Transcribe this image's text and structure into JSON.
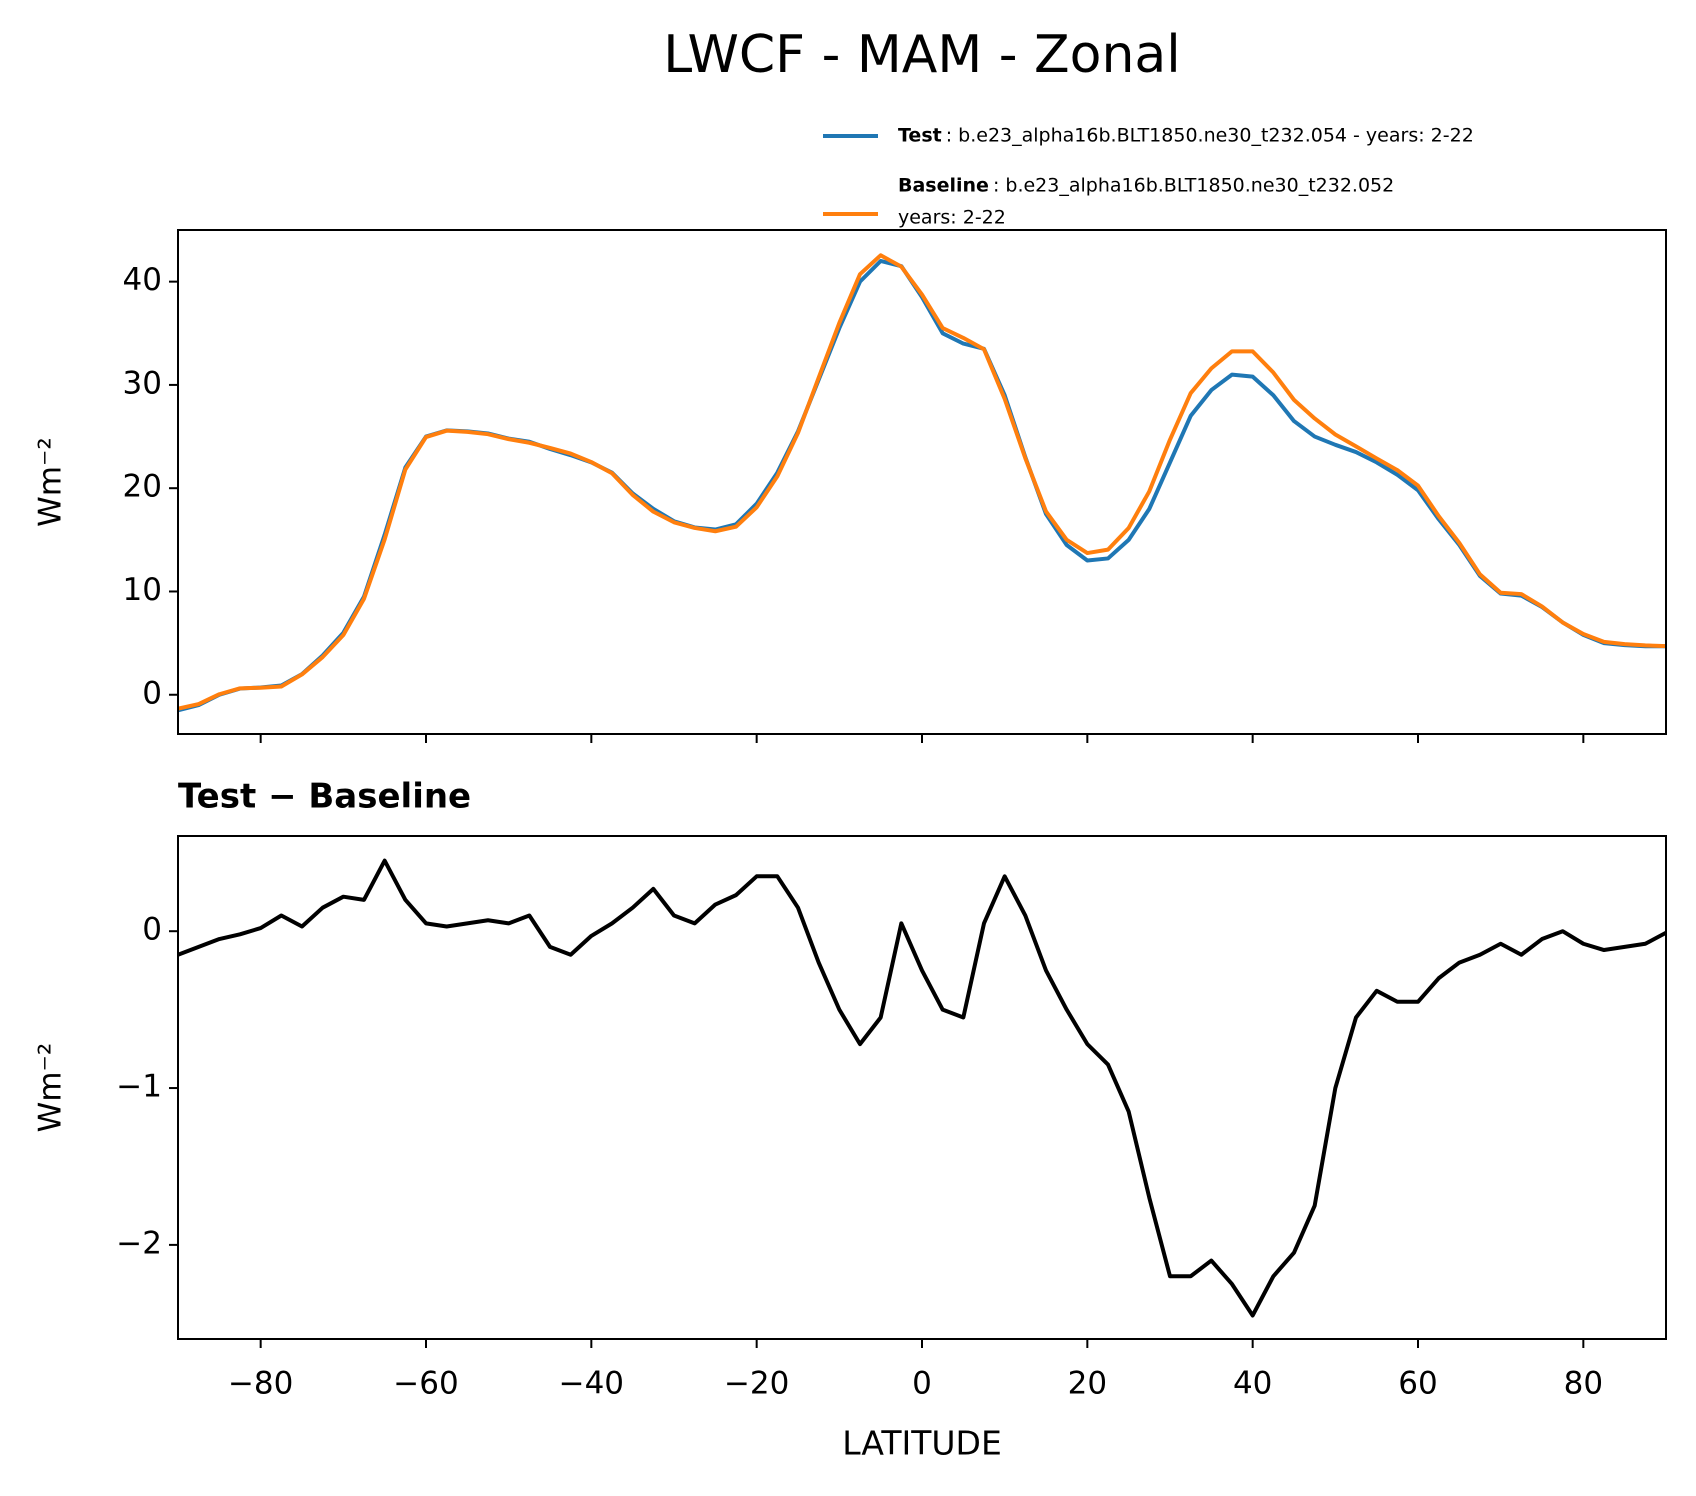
{
  "chart_data": [
    {
      "type": "line",
      "title": "LWCF - MAM - Zonal",
      "ylabel": "Wm⁻²",
      "x": [
        -90,
        -87.5,
        -85,
        -82.5,
        -80,
        -77.5,
        -75,
        -72.5,
        -70,
        -67.5,
        -65,
        -62.5,
        -60,
        -57.5,
        -55,
        -52.5,
        -50,
        -47.5,
        -45,
        -42.5,
        -40,
        -37.5,
        -35,
        -32.5,
        -30,
        -27.5,
        -25,
        -22.5,
        -20,
        -17.5,
        -15,
        -12.5,
        -10,
        -7.5,
        -5,
        -2.5,
        0,
        2.5,
        5,
        7.5,
        10,
        12.5,
        15,
        17.5,
        20,
        22.5,
        25,
        27.5,
        30,
        32.5,
        35,
        37.5,
        40,
        42.5,
        45,
        47.5,
        50,
        52.5,
        55,
        57.5,
        60,
        62.5,
        65,
        67.5,
        70,
        72.5,
        75,
        77.5,
        80,
        82.5,
        85,
        87.5,
        90
      ],
      "series": [
        {
          "name": "Test",
          "legend_text": [
            ": b.e23_alpha16b.BLT1850.ne30_t232.054 - years: 2-22"
          ],
          "color": "#1f77b4",
          "values": [
            -1.5,
            -1.0,
            0.0,
            0.6,
            0.7,
            0.9,
            2.0,
            3.8,
            6.0,
            9.5,
            15.5,
            22.0,
            25.0,
            25.6,
            25.5,
            25.3,
            24.8,
            24.5,
            23.8,
            23.2,
            22.5,
            21.5,
            19.5,
            18.0,
            16.8,
            16.2,
            16.0,
            16.5,
            18.5,
            21.5,
            25.5,
            30.5,
            35.5,
            40.0,
            42.0,
            41.5,
            38.5,
            35.0,
            34.0,
            33.5,
            29.0,
            23.0,
            17.5,
            14.5,
            13.0,
            13.2,
            15.0,
            18.0,
            22.5,
            27.0,
            29.5,
            31.0,
            30.8,
            29.0,
            26.5,
            25.0,
            24.2,
            23.5,
            22.5,
            21.3,
            19.8,
            17.0,
            14.5,
            11.5,
            9.8,
            9.6,
            8.5,
            7.0,
            5.8,
            5.0,
            4.8,
            4.7,
            4.7
          ]
        },
        {
          "name": "Baseline",
          "legend_text": [
            ": b.e23_alpha16b.BLT1850.ne30_t232.052",
            "years: 2-22"
          ],
          "color": "#ff7f0e",
          "values": [
            -1.35,
            -0.9,
            0.05,
            0.62,
            0.68,
            0.8,
            1.97,
            3.65,
            5.78,
            9.3,
            15.05,
            21.8,
            24.95,
            25.57,
            25.45,
            25.23,
            24.75,
            24.4,
            23.9,
            23.35,
            22.53,
            21.45,
            19.35,
            17.73,
            16.7,
            16.15,
            15.83,
            16.27,
            18.15,
            21.15,
            25.35,
            30.7,
            36.0,
            40.72,
            42.55,
            41.45,
            38.75,
            35.5,
            34.55,
            33.45,
            28.65,
            22.9,
            17.75,
            15.0,
            13.72,
            14.05,
            16.15,
            19.7,
            24.7,
            29.2,
            31.6,
            33.25,
            33.25,
            31.2,
            28.55,
            26.75,
            25.2,
            24.05,
            22.88,
            21.75,
            20.25,
            17.3,
            14.7,
            11.65,
            9.88,
            9.75,
            8.55,
            7.0,
            5.88,
            5.12,
            4.9,
            4.78,
            4.71
          ]
        }
      ],
      "xlim": [
        -90,
        90
      ],
      "xticks": [
        -80,
        -60,
        -40,
        -20,
        0,
        20,
        40,
        60,
        80
      ],
      "xtick_labels": false,
      "ylim": [
        -3.8,
        45
      ],
      "yticks": [
        0,
        10,
        20,
        30,
        40
      ]
    },
    {
      "type": "line",
      "title": "Test − Baseline",
      "ylabel": "Wm⁻²",
      "xlabel": "LATITUDE",
      "x": [
        -90,
        -87.5,
        -85,
        -82.5,
        -80,
        -77.5,
        -75,
        -72.5,
        -70,
        -67.5,
        -65,
        -62.5,
        -60,
        -57.5,
        -55,
        -52.5,
        -50,
        -47.5,
        -45,
        -42.5,
        -40,
        -37.5,
        -35,
        -32.5,
        -30,
        -27.5,
        -25,
        -22.5,
        -20,
        -17.5,
        -15,
        -12.5,
        -10,
        -7.5,
        -5,
        -2.5,
        0,
        2.5,
        5,
        7.5,
        10,
        12.5,
        15,
        17.5,
        20,
        22.5,
        25,
        27.5,
        30,
        32.5,
        35,
        37.5,
        40,
        42.5,
        45,
        47.5,
        50,
        52.5,
        55,
        57.5,
        60,
        62.5,
        65,
        67.5,
        70,
        72.5,
        75,
        77.5,
        80,
        82.5,
        85,
        87.5,
        90
      ],
      "series": [
        {
          "color": "#000000",
          "values": [
            -0.15,
            -0.1,
            -0.05,
            -0.02,
            0.02,
            0.1,
            0.03,
            0.15,
            0.22,
            0.2,
            0.45,
            0.2,
            0.05,
            0.03,
            0.05,
            0.07,
            0.05,
            0.1,
            -0.1,
            -0.15,
            -0.03,
            0.05,
            0.15,
            0.27,
            0.1,
            0.05,
            0.17,
            0.23,
            0.35,
            0.35,
            0.15,
            -0.2,
            -0.5,
            -0.72,
            -0.55,
            0.05,
            -0.25,
            -0.5,
            -0.55,
            0.05,
            0.35,
            0.1,
            -0.25,
            -0.5,
            -0.72,
            -0.85,
            -1.15,
            -1.7,
            -2.2,
            -2.2,
            -2.1,
            -2.25,
            -2.45,
            -2.2,
            -2.05,
            -1.75,
            -1.0,
            -0.55,
            -0.38,
            -0.45,
            -0.45,
            -0.3,
            -0.2,
            -0.15,
            -0.08,
            -0.15,
            -0.05,
            0.0,
            -0.08,
            -0.12,
            -0.1,
            -0.08,
            -0.01
          ]
        }
      ],
      "xlim": [
        -90,
        90
      ],
      "xticks": [
        {
          "value": -80,
          "label": "−80"
        },
        {
          "value": -60,
          "label": "−60"
        },
        {
          "value": -40,
          "label": "−40"
        },
        {
          "value": -20,
          "label": "−20"
        },
        0,
        20,
        40,
        60,
        80
      ],
      "xtick_labels": true,
      "ylim": [
        -2.6,
        0.607
      ],
      "yticks": [
        {
          "value": -2,
          "label": "−2"
        },
        {
          "value": -1,
          "label": "−1"
        },
        0
      ]
    }
  ]
}
